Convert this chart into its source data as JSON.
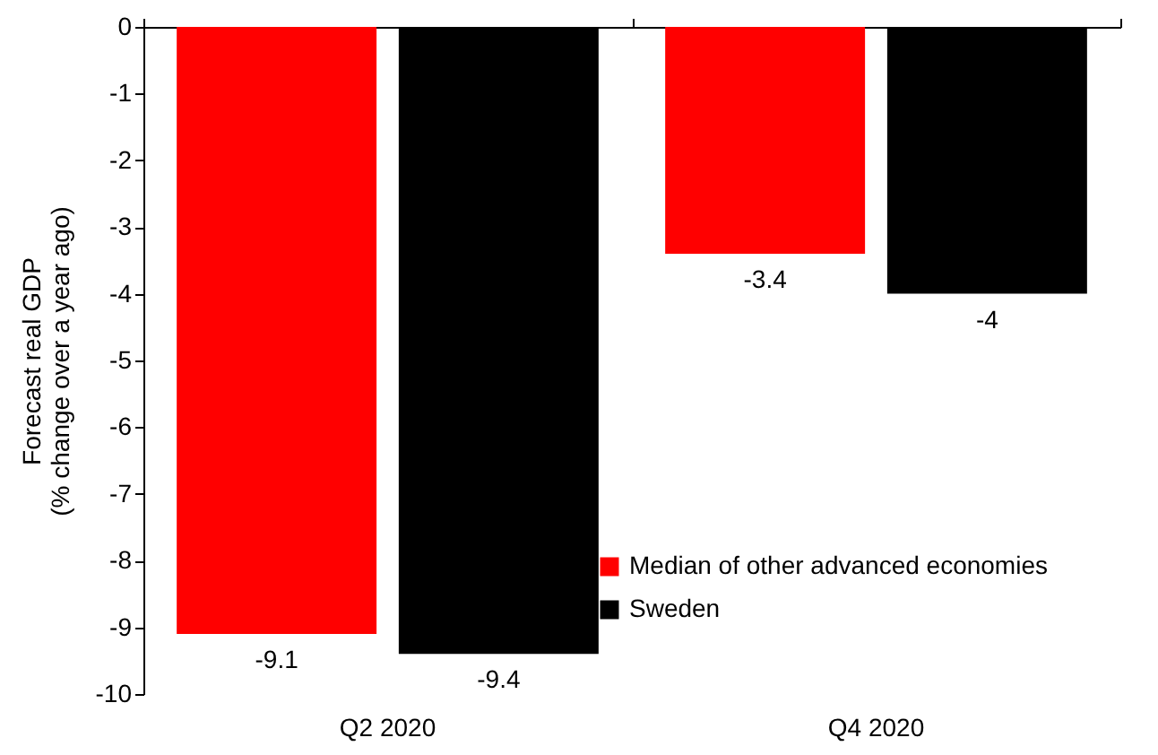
{
  "chart_data": {
    "type": "bar",
    "ylabel": "Forecast real GDP\n(% change over a year ago)",
    "categories": [
      "Q2 2020",
      "Q4 2020"
    ],
    "series": [
      {
        "name": "Median of other advanced economies",
        "color": "#ff0000",
        "values": [
          -9.1,
          -3.4
        ]
      },
      {
        "name": "Sweden",
        "color": "#000000",
        "values": [
          -9.4,
          -4
        ]
      }
    ],
    "ylim": [
      -10,
      0
    ],
    "yticks": [
      -10,
      -9,
      -8,
      -7,
      -6,
      -5,
      -4,
      -3,
      -2,
      -1,
      0
    ],
    "data_labels": true,
    "grid": false,
    "legend": "bottom right"
  }
}
